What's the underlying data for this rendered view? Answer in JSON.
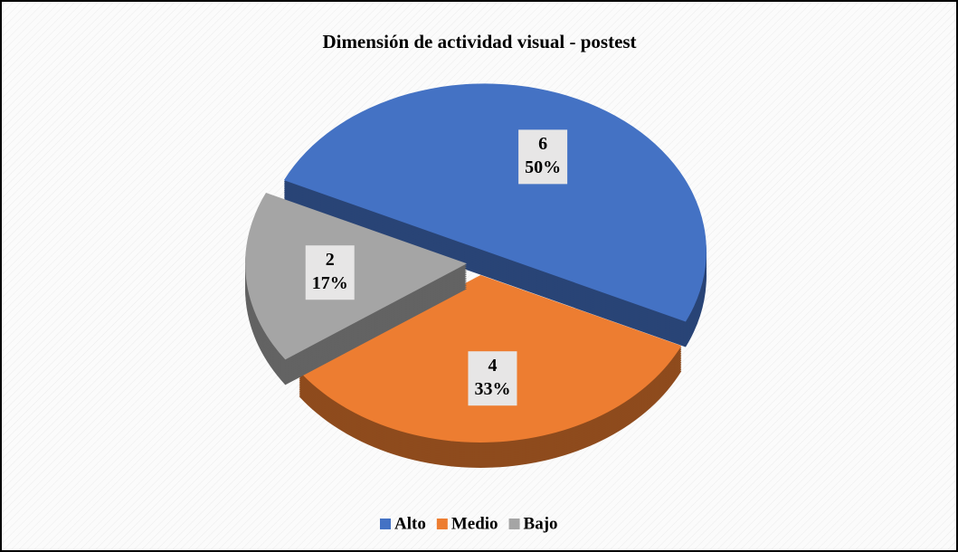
{
  "chart_data": {
    "type": "pie",
    "title": "Dimensión de actividad visual - postest",
    "categories": [
      "Alto",
      "Medio",
      "Bajo"
    ],
    "values": [
      6,
      4,
      2
    ],
    "percent_labels": [
      "50%",
      "33%",
      "17%"
    ],
    "colors": [
      "#4472c4",
      "#ed7d31",
      "#a5a5a5"
    ],
    "legend": "bottom"
  }
}
